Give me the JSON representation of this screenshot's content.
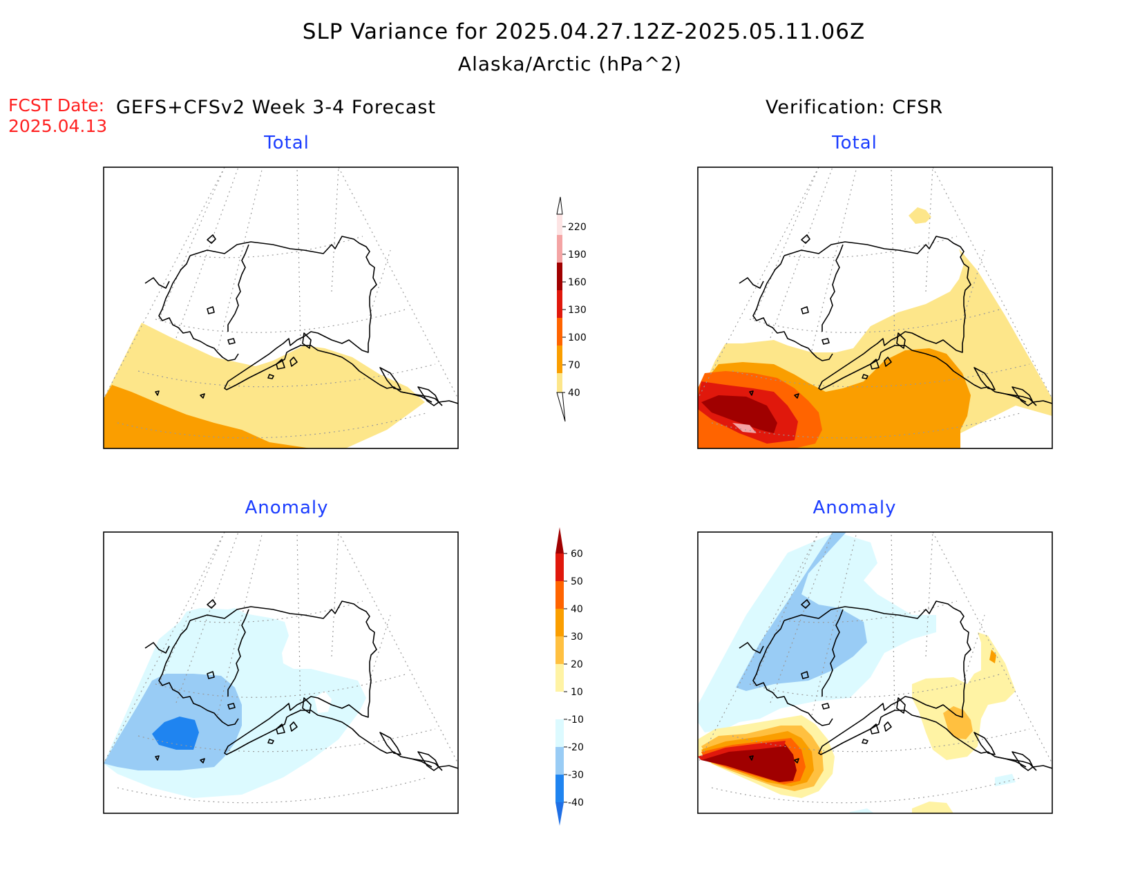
{
  "title": {
    "line1": "SLP Variance for 2025.04.27.12Z-2025.05.11.06Z",
    "line2": "Alaska/Arctic (hPa^2)"
  },
  "forecast": {
    "label": "FCST Date:",
    "date": "2025.04.13"
  },
  "columns": {
    "left_header": "GEFS+CFSv2 Week 3-4 Forecast",
    "right_header": "Verification: CFSR"
  },
  "panels": {
    "top_left_title": "Total",
    "top_right_title": "Total",
    "bottom_left_title": "Anomaly",
    "bottom_right_title": "Anomaly"
  },
  "colorbars": {
    "total": {
      "labels": [
        "40",
        "70",
        "100",
        "130",
        "160",
        "190",
        "220"
      ],
      "colors": [
        "#fde68a",
        "#fa9e00",
        "#ff6400",
        "#e0180c",
        "#a00000",
        "#f4a4a4",
        "#fde4e4"
      ]
    },
    "anomaly": {
      "labels": [
        "-40",
        "-30",
        "-20",
        "-10",
        "10",
        "20",
        "30",
        "40",
        "50",
        "60"
      ],
      "colors": [
        "#1f6fe5",
        "#1f84f0",
        "#99ccf5",
        "#dcfaff",
        "#ffffff",
        "#fff3a4",
        "#ffc040",
        "#fa9e00",
        "#ff6400",
        "#e0180c",
        "#a00000"
      ]
    }
  }
}
